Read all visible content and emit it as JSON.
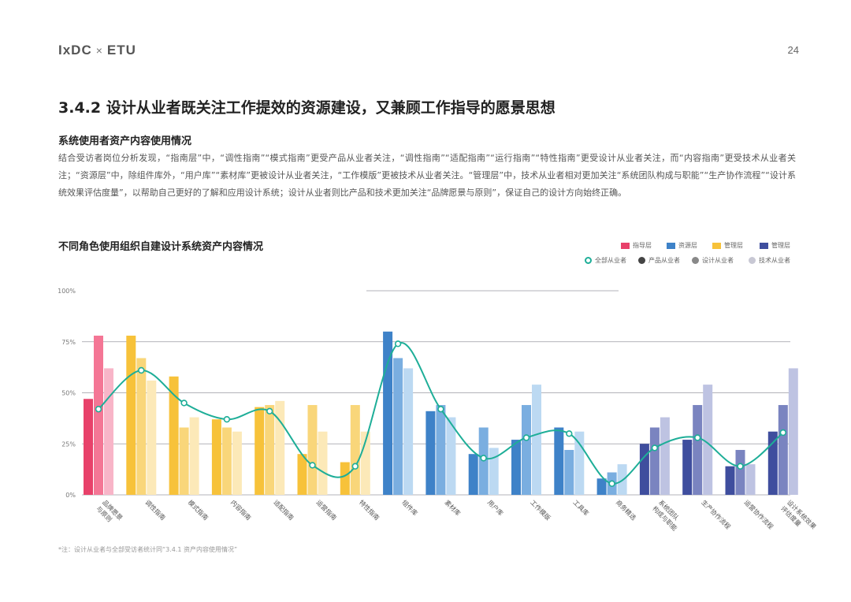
{
  "header": {
    "brand_left": "IxDC",
    "brand_sep": "×",
    "brand_right": "ETU",
    "page_number": "24"
  },
  "section_title": "3.4.2 设计从业者既关注工作提效的资源建设，又兼顾工作指导的愿景思想",
  "sub_title": "系统使用者资产内容使用情况",
  "paragraph": "结合受访者岗位分析发现，“指南层”中，“调性指南”“模式指南”更受产品从业者关注，“调性指南”“适配指南”“运行指南”“特性指南”更受设计从业者关注，而“内容指南”更受技术从业者关注；“资源层”中，除组件库外，“用户库”“素材库”更被设计从业者关注，“工作模版”更被技术从业者关注。“管理层”中，技术从业者相对更加关注“系统团队构成与职能”“生产协作流程”“设计系统效果评估度量”，以帮助自己更好的了解和应用设计系统；设计从业者则比产品和技术更加关注“品牌愿景与原则”，保证自己的设计方向始终正确。",
  "footnote": "*注：设计从业者与全部受访者统计同“3.4.1 资产内容使用情况”",
  "legend": {
    "layers": [
      {
        "label": "指导层",
        "color": "#E8416A"
      },
      {
        "label": "资源层",
        "color": "#3E82C8"
      },
      {
        "label": "管理层",
        "color": "#F7C23A"
      },
      {
        "label": "管理层",
        "color": "#3F4E9E"
      }
    ],
    "roles": [
      {
        "label": "全部从业者",
        "color": "#1EAE98"
      },
      {
        "label": "产品从业者",
        "color": "#444444"
      },
      {
        "label": "设计从业者",
        "color": "#888888"
      },
      {
        "label": "技术从业者",
        "color": "#C8C8D4"
      }
    ]
  },
  "chart_data": {
    "type": "bar",
    "title": "不同角色使用组织自建设计系统资产内容情况",
    "y_tick_labels": [
      "0%",
      "25%",
      "50%",
      "75%",
      "100%"
    ],
    "ylim": [
      0,
      100
    ],
    "categories": [
      [
        "品牌愿景",
        "与原则"
      ],
      [
        "调性指南"
      ],
      [
        "模式指南"
      ],
      [
        "内容指南"
      ],
      [
        "适配指南"
      ],
      [
        "运营指南"
      ],
      [
        "特性指南"
      ],
      [
        "组件库"
      ],
      [
        "素材库"
      ],
      [
        "用户库"
      ],
      [
        "工作模版"
      ],
      [
        "工具库"
      ],
      [
        "商务精选"
      ],
      [
        "系统团队",
        "构成与职能"
      ],
      [
        "生产协作流程"
      ],
      [
        "运营协作流程"
      ],
      [
        "设计系统效果",
        "评估度量"
      ]
    ],
    "category_layer": [
      0,
      2,
      2,
      2,
      2,
      2,
      2,
      1,
      1,
      1,
      1,
      1,
      1,
      3,
      3,
      3,
      3
    ],
    "series": [
      {
        "name": "产品从业者",
        "values": [
          47,
          78,
          58,
          37,
          43,
          20,
          16,
          80,
          41,
          20,
          27,
          33,
          8,
          25,
          27,
          14,
          31
        ]
      },
      {
        "name": "设计从业者",
        "values": [
          78,
          67,
          33,
          33,
          44,
          44,
          44,
          67,
          44,
          33,
          44,
          22,
          11,
          33,
          44,
          22,
          44
        ]
      },
      {
        "name": "技术从业者",
        "values": [
          62,
          56,
          38,
          31,
          46,
          31,
          31,
          62,
          38,
          23,
          54,
          31,
          15,
          38,
          54,
          15,
          62
        ]
      }
    ],
    "line": {
      "name": "全部从业者",
      "values": [
        42,
        61,
        45,
        37,
        41,
        14.5,
        14,
        74,
        42,
        18,
        28,
        30,
        5.5,
        23,
        28,
        14,
        30.5
      ]
    }
  }
}
